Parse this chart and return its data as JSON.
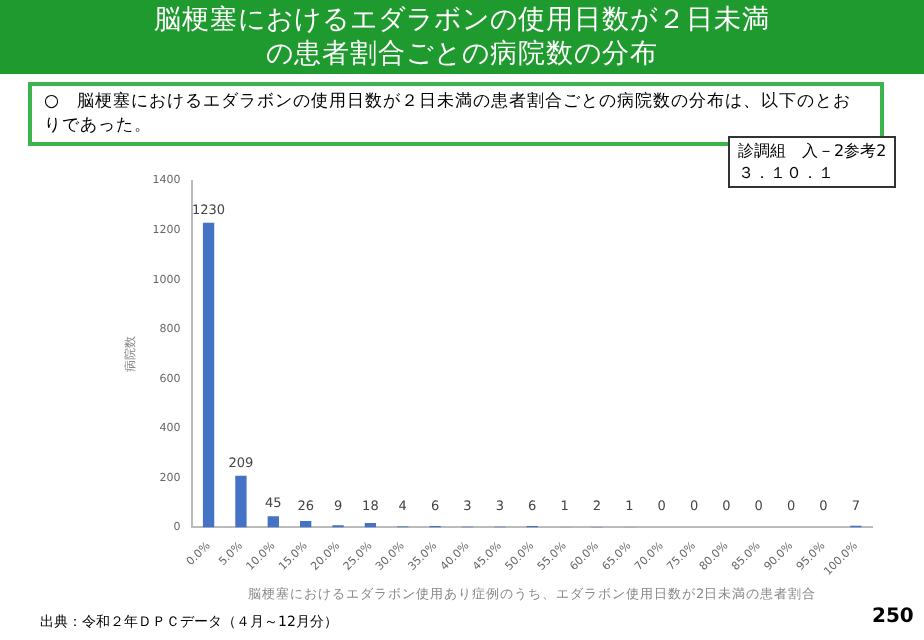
{
  "chart_data": {
    "type": "bar",
    "title": "脳梗塞におけるエダラボンの使用日数が２日未満の患者割合ごとの病院数の分布",
    "subtitle": "○　脳梗塞におけるエダラボンの使用日数が２日未満の患者割合ごとの病院数の分布は、以下のとおりであった。",
    "annotations": [
      "診調組　入－2参考2\n３．１０．１",
      "出典：令和２年ＤＰＣデータ（４月～12月分）",
      "250"
    ],
    "xlabel": "脳梗塞におけるエダラボン使用あり症例のうち、エダラボン使用日数が2日未満の患者割合",
    "ylabel": "病院数",
    "categories": [
      "0.0%",
      "5.0%",
      "10.0%",
      "15.0%",
      "20.0%",
      "25.0%",
      "30.0%",
      "35.0%",
      "40.0%",
      "45.0%",
      "50.0%",
      "55.0%",
      "60.0%",
      "65.0%",
      "70.0%",
      "75.0%",
      "80.0%",
      "85.0%",
      "90.0%",
      "95.0%",
      "100.0%"
    ],
    "values": [
      1230,
      209,
      45,
      26,
      9,
      18,
      4,
      6,
      3,
      3,
      6,
      1,
      2,
      1,
      0,
      0,
      0,
      0,
      0,
      0,
      7
    ],
    "color": "#4472c4",
    "ylim": [
      0,
      1400
    ],
    "yticks": [
      0,
      200,
      400,
      600,
      800,
      1000,
      1200,
      1400
    ],
    "grid": false,
    "legend": false,
    "data_labels": true
  }
}
